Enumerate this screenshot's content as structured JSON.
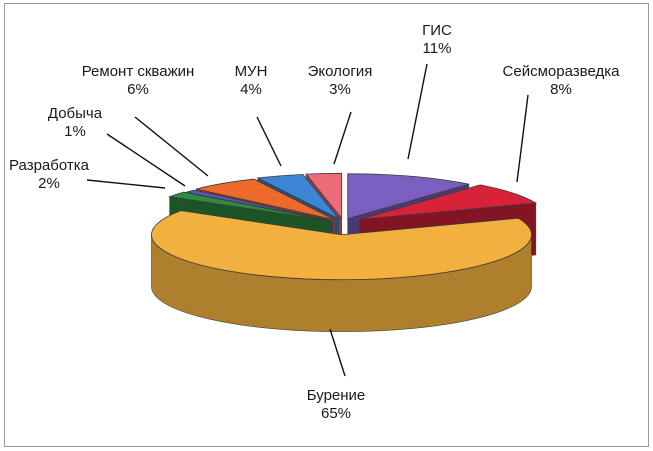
{
  "chart_data": {
    "type": "pie",
    "title": "",
    "slices": [
      {
        "label": "ГИС",
        "value": 11,
        "value_text": "11%",
        "color": "#7b5fc0"
      },
      {
        "label": "Сейсморазведка",
        "value": 8,
        "value_text": "8%",
        "color": "#d8223a"
      },
      {
        "label": "Бурение",
        "value": 65,
        "value_text": "65%",
        "color": "#f2b13e"
      },
      {
        "label": "Разработка",
        "value": 2,
        "value_text": "2%",
        "color": "#2e8c3e"
      },
      {
        "label": "Добыча",
        "value": 1,
        "value_text": "1%",
        "color": "#5a55c8"
      },
      {
        "label": "Ремонт скважин",
        "value": 6,
        "value_text": "6%",
        "color": "#ee6a2a"
      },
      {
        "label": "МУН",
        "value": 4,
        "value_text": "4%",
        "color": "#3d86d6"
      },
      {
        "label": "Экология",
        "value": 3,
        "value_text": "3%",
        "color": "#ee6b7a"
      }
    ],
    "legend": "none",
    "grid": false
  }
}
